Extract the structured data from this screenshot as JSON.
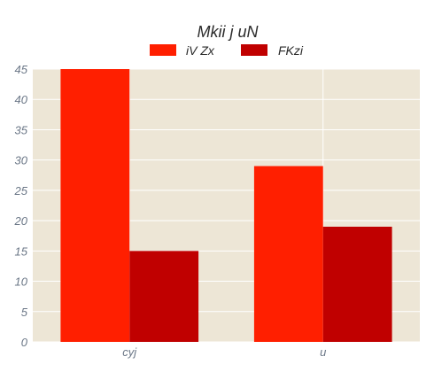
{
  "chart_data": {
    "type": "bar",
    "title": "Mkii j uN",
    "categories": [
      "cyj",
      "u"
    ],
    "series": [
      {
        "name": "iV Zx",
        "color": "#ff1f00",
        "values": [
          45,
          29
        ]
      },
      {
        "name": "FKzi",
        "color": "#c00000",
        "values": [
          15,
          19
        ]
      }
    ],
    "ylim": [
      0,
      45
    ],
    "yticks": [
      "0",
      "5",
      "10",
      "15",
      "20",
      "25",
      "30",
      "35",
      "40",
      "45"
    ],
    "grid": true,
    "legend_position": "top-center",
    "plot_background": "#ede6d6",
    "grid_color": "#ffffff"
  }
}
